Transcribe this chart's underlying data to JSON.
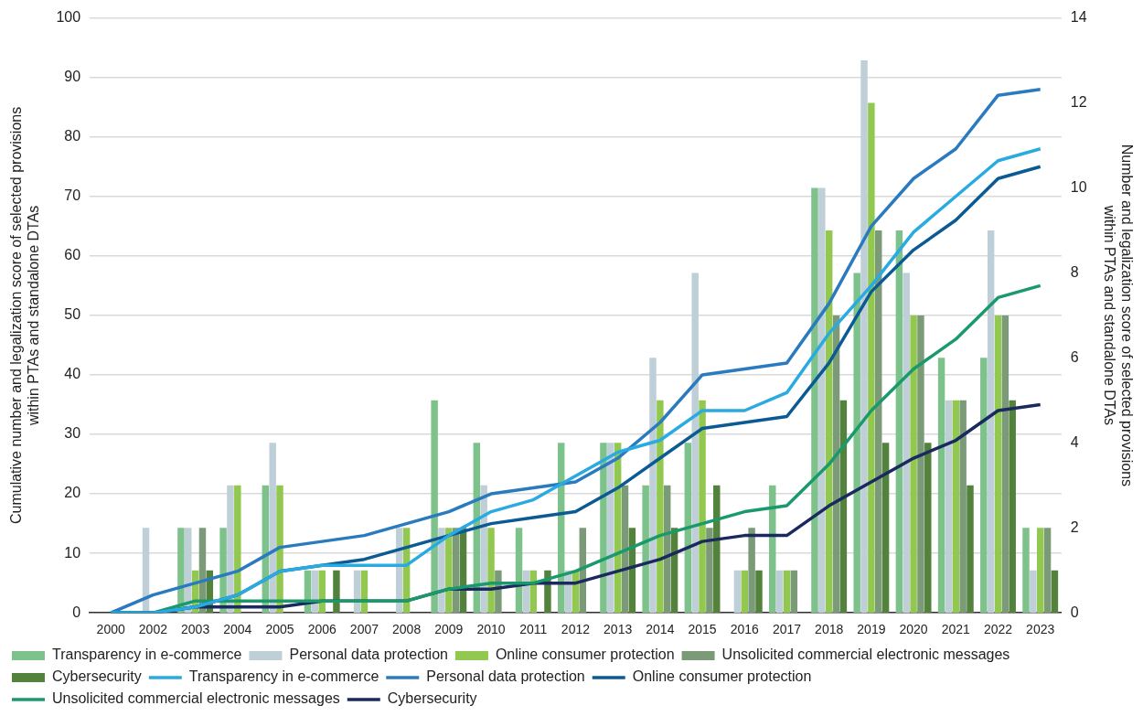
{
  "chart_data": {
    "type": "bar",
    "ylabel": "Cumulative number and legalization score of selected provisions within PTAs and standalone DTAs",
    "y2label": "Number and legalization score of selected provisions within PTAs and standalone DTAs",
    "categories": [
      "2000",
      "2002",
      "2003",
      "2004",
      "2005",
      "2006",
      "2007",
      "2008",
      "2009",
      "2010",
      "2011",
      "2012",
      "2013",
      "2014",
      "2015",
      "2016",
      "2017",
      "2018",
      "2019",
      "2020",
      "2021",
      "2022",
      "2023"
    ],
    "ylim": [
      0,
      100
    ],
    "yticks": [
      0,
      10,
      20,
      30,
      40,
      50,
      60,
      70,
      80,
      90,
      100
    ],
    "y2lim": [
      0,
      14
    ],
    "y2ticks": [
      0,
      2,
      4,
      6,
      8,
      10,
      12,
      14
    ],
    "grid": "y",
    "legend": "bottom",
    "series": [
      {
        "name": "Transparency in e-commerce",
        "axis": "y2",
        "color": "#7dc28a",
        "values": [
          0,
          0,
          2,
          2,
          3,
          1,
          0,
          0,
          5,
          4,
          2,
          4,
          4,
          3,
          4,
          0,
          3,
          10,
          8,
          9,
          6,
          6,
          2
        ]
      },
      {
        "name": "Personal data protection",
        "axis": "y2",
        "color": "#bfcfd8",
        "values": [
          0,
          2,
          2,
          3,
          4,
          1,
          1,
          2,
          2,
          3,
          1,
          1,
          4,
          6,
          8,
          1,
          1,
          10,
          13,
          8,
          5,
          9,
          1
        ]
      },
      {
        "name": "Online consumer protection",
        "axis": "y2",
        "color": "#92c84f",
        "values": [
          0,
          0,
          1,
          3,
          3,
          1,
          1,
          2,
          2,
          2,
          1,
          1,
          4,
          5,
          5,
          1,
          1,
          9,
          12,
          7,
          5,
          7,
          2
        ]
      },
      {
        "name": "Unsolicited commercial electronic messages",
        "axis": "y2",
        "color": "#7a9a78",
        "values": [
          0,
          0,
          2,
          0,
          0,
          0,
          0,
          0,
          2,
          1,
          0,
          2,
          3,
          3,
          2,
          2,
          1,
          7,
          9,
          7,
          5,
          7,
          2
        ]
      },
      {
        "name": "Cybersecurity",
        "axis": "y2",
        "color": "#52823c",
        "values": [
          0,
          0,
          1,
          0,
          0,
          1,
          0,
          0,
          2,
          0,
          1,
          0,
          2,
          2,
          3,
          1,
          0,
          5,
          4,
          4,
          3,
          5,
          1
        ]
      },
      {
        "name": "Transparency in e-commerce",
        "type": "line",
        "color": "#29abe2",
        "values": [
          0,
          0,
          1,
          3,
          7,
          8,
          8,
          8,
          13,
          17,
          19,
          23,
          27,
          29,
          34,
          34,
          37,
          47,
          55,
          64,
          70,
          76,
          78
        ]
      },
      {
        "name": "Personal data protection",
        "type": "line",
        "color": "#2a7abf",
        "values": [
          0,
          3,
          5,
          7,
          11,
          12,
          13,
          15,
          17,
          20,
          21,
          22,
          26,
          32,
          40,
          41,
          42,
          52,
          65,
          73,
          78,
          87,
          88
        ]
      },
      {
        "name": "Online consumer protection",
        "type": "line",
        "color": "#0b5a94",
        "values": [
          0,
          0,
          1,
          3,
          7,
          8,
          9,
          11,
          13,
          15,
          16,
          17,
          21,
          26,
          31,
          32,
          33,
          42,
          54,
          61,
          66,
          73,
          75
        ]
      },
      {
        "name": "Unsolicited commercial electronic messages",
        "type": "line",
        "color": "#1a9a6c",
        "values": [
          0,
          0,
          2,
          2,
          2,
          2,
          2,
          2,
          4,
          5,
          5,
          7,
          10,
          13,
          15,
          17,
          18,
          25,
          34,
          41,
          46,
          53,
          55
        ]
      },
      {
        "name": "Cybersecurity",
        "type": "line",
        "color": "#1b2a5e",
        "values": [
          0,
          0,
          1,
          1,
          1,
          2,
          2,
          2,
          4,
          4,
          5,
          5,
          7,
          9,
          12,
          13,
          13,
          18,
          22,
          26,
          29,
          34,
          35
        ]
      }
    ]
  }
}
